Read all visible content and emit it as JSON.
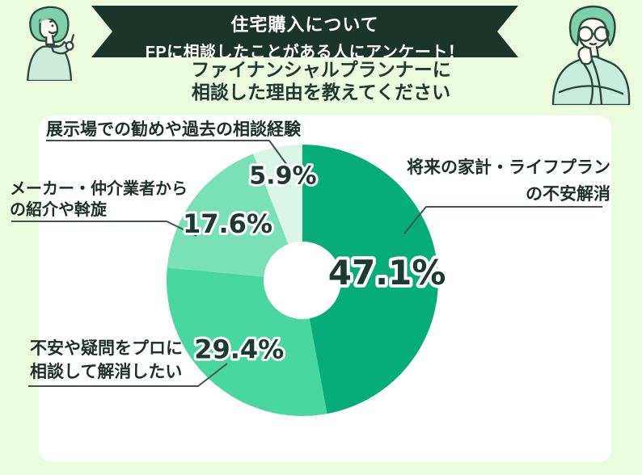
{
  "page": {
    "background_color": "#ebfbde",
    "card_color": "#ffffff"
  },
  "banner": {
    "background_color": "#1c352b",
    "text_color": "#ffffff",
    "line1": "住宅購入について",
    "line2": "FPに相談したことがある人にアンケート！"
  },
  "question": {
    "line1": "ファイナンシャルプランナーに",
    "line2": "相談した理由を教えてください",
    "color": "#203830"
  },
  "illustrations": {
    "left": "pointing-woman",
    "right": "thinking-man-with-glasses"
  },
  "chart_data": {
    "type": "pie",
    "donut": true,
    "title": "ファイナンシャルプランナーに相談した理由",
    "start_angle_deg": 0,
    "direction": "clockwise",
    "hole_fraction": 0.285,
    "legend_position": "callouts",
    "segments": [
      {
        "label": "将来の家計・ライフプランの不安解消",
        "value": 47.1,
        "display": "47.1%",
        "color": "#07ad79"
      },
      {
        "label": "不安や疑問をプロに相談して解消したい",
        "value": 29.4,
        "display": "29.4%",
        "color": "#48d7a0"
      },
      {
        "label": "メーカー・仲介業者からの紹介や斡旋",
        "value": 17.6,
        "display": "17.6%",
        "color": "#79e0b8"
      },
      {
        "label": "展示場での勧めや過去の相談経験",
        "value": 5.9,
        "display": "5.9%",
        "color": "#d9f6e8"
      }
    ],
    "value_label_color": "#1d3a31",
    "value_label_outline": "#ffffff"
  },
  "callouts": {
    "future_plan": {
      "lines": [
        "将来の家計・ライフプラン",
        "の不安解消"
      ]
    },
    "pro_consult": {
      "lines": [
        "不安や疑問をプロに",
        "相談して解消したい"
      ]
    },
    "agent_referral": {
      "lines": [
        "メーカー・仲介業者から",
        "の紹介や斡旋"
      ]
    },
    "exhibition": {
      "lines": [
        "展示場での勧めや過去の相談経験"
      ]
    }
  }
}
